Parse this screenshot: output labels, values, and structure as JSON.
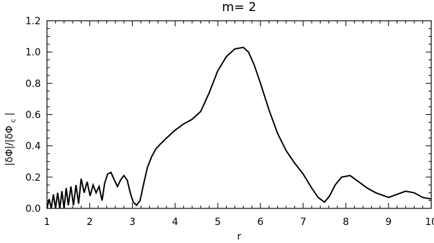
{
  "chart_data": {
    "type": "line",
    "title": "m= 2",
    "xlabel": "r",
    "ylabel": "|δΦ|/|δΦc|",
    "ylabel_main": "|δΦ|/|δΦ",
    "ylabel_sub": "c",
    "ylabel_end": "|",
    "xlim": [
      1,
      10
    ],
    "ylim": [
      0,
      1.2
    ],
    "xticks": [
      1,
      2,
      3,
      4,
      5,
      6,
      7,
      8,
      9,
      10
    ],
    "xtick_labels": [
      "1",
      "2",
      "3",
      "4",
      "5",
      "6",
      "7",
      "8",
      "9",
      "10"
    ],
    "yticks": [
      0,
      0.2,
      0.4,
      0.6,
      0.8,
      1.0,
      1.2
    ],
    "ytick_labels": [
      "0.0",
      "0.2",
      "0.4",
      "0.6",
      "0.8",
      "1.0",
      "1.2"
    ],
    "grid": false,
    "legend": "none",
    "series": [
      {
        "color": "#000000",
        "x": [
          1.0,
          1.05,
          1.1,
          1.15,
          1.2,
          1.25,
          1.3,
          1.35,
          1.4,
          1.45,
          1.5,
          1.56,
          1.62,
          1.68,
          1.74,
          1.8,
          1.87,
          1.94,
          2.01,
          2.08,
          2.15,
          2.22,
          2.29,
          2.35,
          2.42,
          2.5,
          2.58,
          2.65,
          2.72,
          2.8,
          2.88,
          2.95,
          3.02,
          3.1,
          3.18,
          3.25,
          3.35,
          3.45,
          3.55,
          3.65,
          3.8,
          4.0,
          4.2,
          4.4,
          4.6,
          4.8,
          5.0,
          5.2,
          5.4,
          5.6,
          5.72,
          5.85,
          6.0,
          6.2,
          6.4,
          6.6,
          6.8,
          7.0,
          7.2,
          7.35,
          7.5,
          7.62,
          7.75,
          7.9,
          8.1,
          8.3,
          8.5,
          8.7,
          8.9,
          9.0,
          9.2,
          9.4,
          9.6,
          9.8,
          10.0
        ],
        "y": [
          0.0,
          0.06,
          0.0,
          0.09,
          0.0,
          0.1,
          0.0,
          0.11,
          0.0,
          0.13,
          0.02,
          0.14,
          0.02,
          0.15,
          0.03,
          0.19,
          0.1,
          0.17,
          0.08,
          0.15,
          0.1,
          0.14,
          0.05,
          0.16,
          0.22,
          0.23,
          0.18,
          0.14,
          0.18,
          0.21,
          0.18,
          0.1,
          0.04,
          0.02,
          0.05,
          0.14,
          0.26,
          0.33,
          0.38,
          0.41,
          0.45,
          0.5,
          0.54,
          0.57,
          0.62,
          0.74,
          0.88,
          0.97,
          1.02,
          1.03,
          1.0,
          0.92,
          0.8,
          0.63,
          0.48,
          0.37,
          0.29,
          0.22,
          0.13,
          0.07,
          0.04,
          0.08,
          0.15,
          0.2,
          0.21,
          0.17,
          0.13,
          0.1,
          0.08,
          0.07,
          0.09,
          0.11,
          0.1,
          0.07,
          0.06
        ]
      }
    ]
  }
}
